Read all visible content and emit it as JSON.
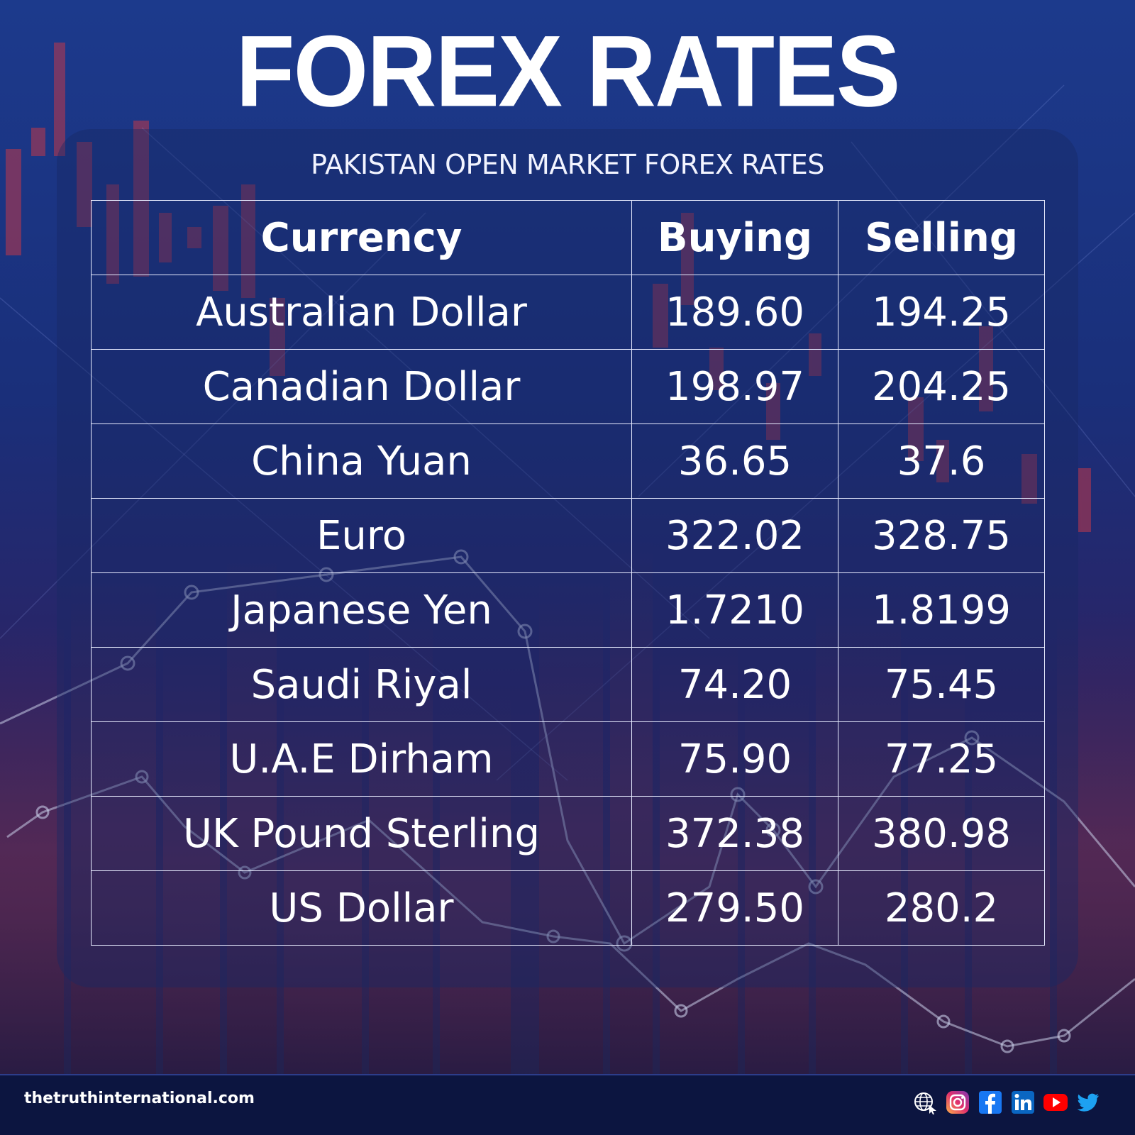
{
  "title": "FOREX RATES",
  "subtitle": "PAKISTAN OPEN MARKET FOREX RATES",
  "table": {
    "headers": [
      "Currency",
      "Buying",
      "Selling"
    ],
    "rows": [
      {
        "currency": "Australian Dollar",
        "buying": "189.60",
        "selling": "194.25"
      },
      {
        "currency": "Canadian Dollar",
        "buying": "198.97",
        "selling": "204.25"
      },
      {
        "currency": "China Yuan",
        "buying": "36.65",
        "selling": "37.6"
      },
      {
        "currency": "Euro",
        "buying": "322.02",
        "selling": "328.75"
      },
      {
        "currency": "Japanese Yen",
        "buying": "1.7210",
        "selling": "1.8199"
      },
      {
        "currency": "Saudi Riyal",
        "buying": "74.20",
        "selling": "75.45"
      },
      {
        "currency": "U.A.E Dirham",
        "buying": "75.90",
        "selling": "77.25"
      },
      {
        "currency": "UK Pound Sterling",
        "buying": "372.38",
        "selling": "380.98"
      },
      {
        "currency": "US Dollar",
        "buying": "279.50",
        "selling": "280.2"
      }
    ]
  },
  "footer": {
    "website": "thetruthinternational.com",
    "social_icons": [
      "globe-icon",
      "instagram-icon",
      "facebook-icon",
      "linkedin-icon",
      "youtube-icon",
      "twitter-icon"
    ]
  },
  "colors": {
    "background_top": "#1c3a8c",
    "background_bottom": "#3a2558",
    "text": "#ffffff",
    "grid_line": "#e8ecff",
    "footer_bg": "#0c1540",
    "candle_red": "#c0384a"
  }
}
